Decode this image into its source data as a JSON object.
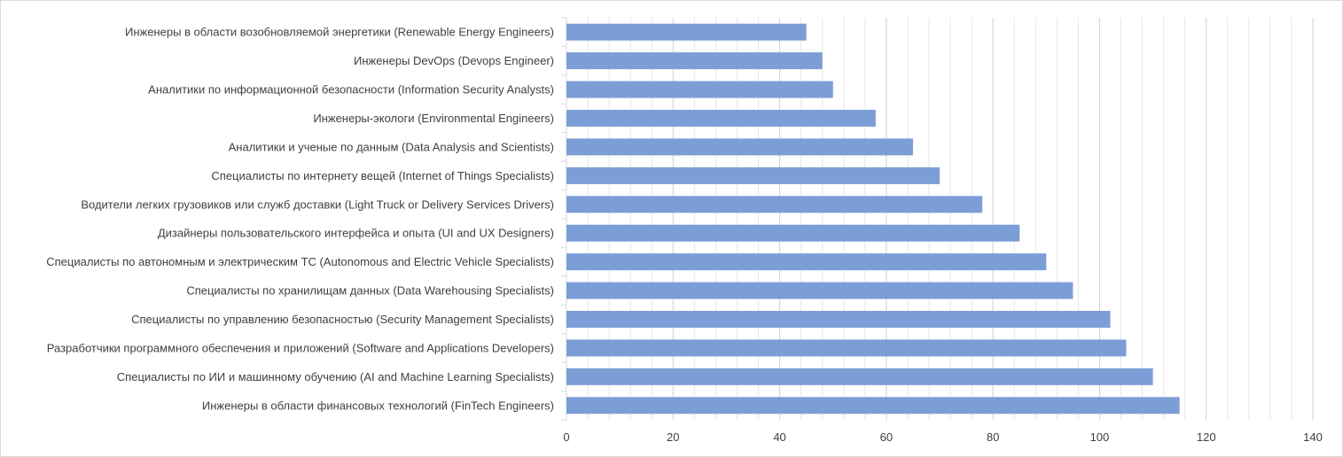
{
  "chart_data": {
    "type": "bar",
    "orientation": "horizontal",
    "title": "",
    "xlabel": "",
    "ylabel": "",
    "xlim": [
      0,
      140
    ],
    "x_ticks": [
      "0",
      "20",
      "40",
      "60",
      "80",
      "100",
      "120",
      "140"
    ],
    "grid": true,
    "legend": "none",
    "bar_color": "#7B9ED6",
    "categories": [
      "Инженеры в области возобновляемой энергетики (Renewable Energy Engineers)",
      "Инженеры DevOps (Devops Engineer)",
      "Аналитики по информационной безопасности (Information Security Analysts)",
      "Инженеры-экологи (Environmental Engineers)",
      "Аналитики и ученые по данным (Data Analysis and Scientists)",
      "Специалисты по интернету вещей (Internet of Things Specialists)",
      "Водители легких грузовиков или служб доставки (Light Truck or Delivery Services Drivers)",
      "Дизайнеры пользовательского интерфейса и опыта (UI and UX Designers)",
      "Специалисты по автономным и электрическим ТС (Autonomous and Electric Vehicle Specialists)",
      "Специалисты по хранилищам данных (Data Warehousing Specialists)",
      "Специалисты по управлению безопасностью (Security Management Specialists)",
      "Разработчики программного обеспечения и приложений (Software and Applications Developers)",
      "Специалисты по ИИ и машинному обучению (AI and Machine Learning Specialists)",
      "Инженеры в области финансовых технологий (FinTech Engineers)"
    ],
    "values": [
      45,
      48,
      50,
      58,
      65,
      70,
      78,
      85,
      90,
      95,
      102,
      105,
      110,
      115
    ]
  }
}
